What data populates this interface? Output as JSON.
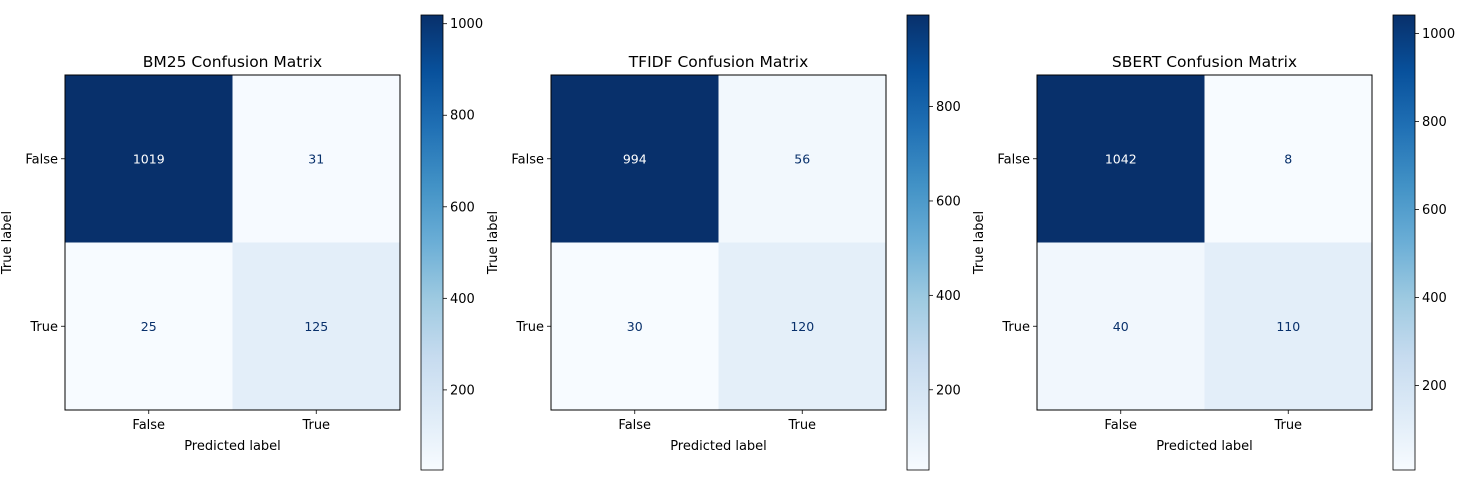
{
  "chart_data": [
    {
      "type": "heatmap",
      "title": "BM25 Confusion Matrix",
      "xlabel": "Predicted label",
      "ylabel": "True label",
      "x_categories": [
        "False",
        "True"
      ],
      "y_categories": [
        "False",
        "True"
      ],
      "values": [
        [
          1019,
          31
        ],
        [
          25,
          125
        ]
      ],
      "colormap": "Blues",
      "colorbar": {
        "range": [
          25,
          1019
        ],
        "ticks": [
          200,
          400,
          600,
          800,
          1000
        ]
      }
    },
    {
      "type": "heatmap",
      "title": "TFIDF Confusion Matrix",
      "xlabel": "Predicted label",
      "ylabel": "True label",
      "x_categories": [
        "False",
        "True"
      ],
      "y_categories": [
        "False",
        "True"
      ],
      "values": [
        [
          994,
          56
        ],
        [
          30,
          120
        ]
      ],
      "colormap": "Blues",
      "colorbar": {
        "range": [
          30,
          994
        ],
        "ticks": [
          200,
          400,
          600,
          800
        ]
      }
    },
    {
      "type": "heatmap",
      "title": "SBERT Confusion Matrix",
      "xlabel": "Predicted label",
      "ylabel": "True label",
      "x_categories": [
        "False",
        "True"
      ],
      "y_categories": [
        "False",
        "True"
      ],
      "values": [
        [
          1042,
          8
        ],
        [
          40,
          110
        ]
      ],
      "colormap": "Blues",
      "colorbar": {
        "range": [
          8,
          1042
        ],
        "ticks": [
          200,
          400,
          600,
          800,
          1000
        ]
      }
    }
  ]
}
